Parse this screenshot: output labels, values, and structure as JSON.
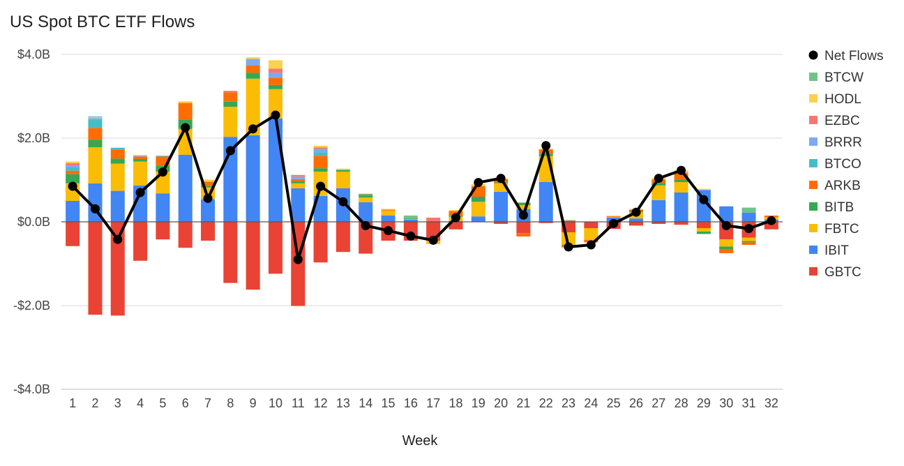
{
  "chart_data": {
    "type": "bar",
    "title": "US Spot BTC ETF Flows",
    "xlabel": "Week",
    "ylabel": "",
    "ylim": [
      -4.0,
      4.0
    ],
    "y_ticks": [
      4.0,
      2.0,
      0.0,
      -2.0,
      -4.0
    ],
    "y_tick_labels": [
      "$4.0B",
      "$2.0B",
      "$0.0B",
      "-$2.0B",
      "-$4.0B"
    ],
    "stacked": true,
    "grid": true,
    "legend_position": "right",
    "categories": [
      "1",
      "2",
      "3",
      "4",
      "5",
      "6",
      "7",
      "8",
      "9",
      "10",
      "11",
      "12",
      "13",
      "14",
      "15",
      "16",
      "17",
      "18",
      "19",
      "20",
      "21",
      "22",
      "23",
      "24",
      "25",
      "26",
      "27",
      "28",
      "29",
      "30",
      "31",
      "32"
    ],
    "series": [
      {
        "name": "GBTC",
        "color": "#ea4335",
        "values": [
          -0.58,
          -2.22,
          -2.24,
          -0.93,
          -0.42,
          -0.62,
          -0.45,
          -1.46,
          -1.62,
          -1.24,
          -2.01,
          -0.97,
          -0.72,
          -0.76,
          -0.45,
          -0.45,
          -0.45,
          -0.18,
          0,
          -0.05,
          -0.27,
          -0.03,
          -0.25,
          -0.15,
          -0.17,
          -0.09,
          -0.05,
          -0.07,
          -0.15,
          -0.42,
          -0.38,
          -0.18
        ]
      },
      {
        "name": "IBIT",
        "color": "#4285f4",
        "values": [
          0.5,
          0.92,
          0.74,
          0.87,
          0.68,
          1.6,
          0.54,
          2.03,
          2.07,
          2.47,
          0.8,
          0.62,
          0.8,
          0.47,
          0.15,
          0.05,
          0,
          0.02,
          0.13,
          0.72,
          0.3,
          0.95,
          0.03,
          0,
          0.1,
          0.08,
          0.52,
          0.7,
          0.75,
          0.37,
          0.22,
          0.05
        ]
      },
      {
        "name": "FBTC",
        "color": "#fbbc04",
        "values": [
          0.42,
          0.86,
          0.65,
          0.57,
          0.52,
          0.62,
          0.28,
          0.72,
          1.35,
          0.7,
          0.12,
          0.58,
          0.4,
          0.11,
          0.12,
          0.02,
          -0.08,
          0.1,
          0.35,
          0.2,
          0.1,
          0.62,
          -0.3,
          -0.28,
          0.02,
          0.15,
          0.35,
          0.25,
          -0.08,
          -0.17,
          -0.08,
          0.06
        ]
      },
      {
        "name": "BITB",
        "color": "#34a853",
        "values": [
          0.22,
          0.18,
          0.12,
          0.06,
          0.14,
          0.22,
          0.04,
          0.12,
          0.14,
          0.1,
          0.05,
          0.08,
          0.04,
          0.05,
          0,
          0.02,
          0,
          0.02,
          0.12,
          0.02,
          0.06,
          0.06,
          -0.02,
          0,
          0,
          0.02,
          0.06,
          0.06,
          -0.06,
          -0.06,
          -0.03,
          0
        ]
      },
      {
        "name": "ARKB",
        "color": "#ff6d01",
        "values": [
          0.08,
          0.28,
          0.22,
          0.06,
          0.22,
          0.4,
          0.1,
          0.22,
          0.18,
          0.17,
          0.05,
          0.3,
          0,
          0.02,
          0.02,
          0,
          0,
          0.12,
          0.25,
          0.08,
          -0.08,
          0.1,
          -0.04,
          -0.06,
          0.02,
          0.04,
          0.08,
          0.15,
          0,
          -0.1,
          -0.06,
          0.04
        ]
      },
      {
        "name": "BTCO",
        "color": "#46bdc6",
        "values": [
          0.08,
          0.2,
          0.04,
          0,
          0.02,
          0,
          0,
          0,
          0,
          0,
          0,
          0.08,
          0,
          0.02,
          0,
          0,
          0,
          0,
          0,
          0,
          0,
          0,
          0,
          0,
          0,
          0,
          0,
          0,
          0,
          0,
          0,
          0
        ]
      },
      {
        "name": "BRRR",
        "color": "#7baaf7",
        "values": [
          0.04,
          0.04,
          0,
          0.02,
          0,
          0,
          0,
          0,
          0.15,
          0.12,
          0.06,
          0.08,
          0,
          0,
          0,
          0.02,
          0,
          0,
          0,
          0,
          0,
          0,
          0,
          0,
          0,
          0,
          0,
          0,
          0.02,
          0,
          0,
          0
        ]
      },
      {
        "name": "EZBC",
        "color": "#f07b72",
        "values": [
          0.06,
          0,
          0,
          0,
          0,
          0,
          0,
          0.04,
          0,
          0.1,
          0.04,
          0.04,
          0,
          0,
          0,
          0,
          0.1,
          0,
          0,
          0,
          0,
          0,
          0,
          0,
          0,
          0,
          0,
          0.02,
          0,
          0,
          0,
          0
        ]
      },
      {
        "name": "HODL",
        "color": "#fcd04f",
        "values": [
          0.04,
          0.02,
          0,
          0.02,
          0,
          0.04,
          0.05,
          0,
          0.04,
          0.2,
          0,
          0.04,
          0.03,
          0,
          0.02,
          0,
          0,
          0.02,
          0.05,
          0.02,
          0,
          0.02,
          0.02,
          0,
          0,
          0.02,
          0.04,
          0.05,
          0.02,
          0,
          0,
          0
        ]
      },
      {
        "name": "BTCW",
        "color": "#71c287",
        "values": [
          0,
          0.02,
          0,
          0,
          0,
          0,
          0,
          0,
          0,
          0,
          0,
          0,
          0,
          0,
          0,
          0.04,
          0,
          0,
          0,
          0,
          0,
          0,
          0,
          0,
          0,
          0,
          0,
          0,
          0,
          0,
          0.12,
          0
        ]
      }
    ],
    "line_series": {
      "name": "Net Flows",
      "color": "#000000",
      "values": [
        0.85,
        0.31,
        -0.42,
        0.7,
        1.19,
        2.25,
        0.56,
        1.7,
        2.22,
        2.55,
        -0.9,
        0.85,
        0.48,
        -0.09,
        -0.21,
        -0.34,
        -0.44,
        0.1,
        0.94,
        1.04,
        0.16,
        1.82,
        -0.6,
        -0.55,
        -0.04,
        0.23,
        1.04,
        1.23,
        0.53,
        -0.09,
        -0.16,
        0.03
      ]
    },
    "legend_order": [
      "Net Flows",
      "BTCW",
      "HODL",
      "EZBC",
      "BRRR",
      "BTCO",
      "ARKB",
      "BITB",
      "FBTC",
      "IBIT",
      "GBTC"
    ]
  }
}
